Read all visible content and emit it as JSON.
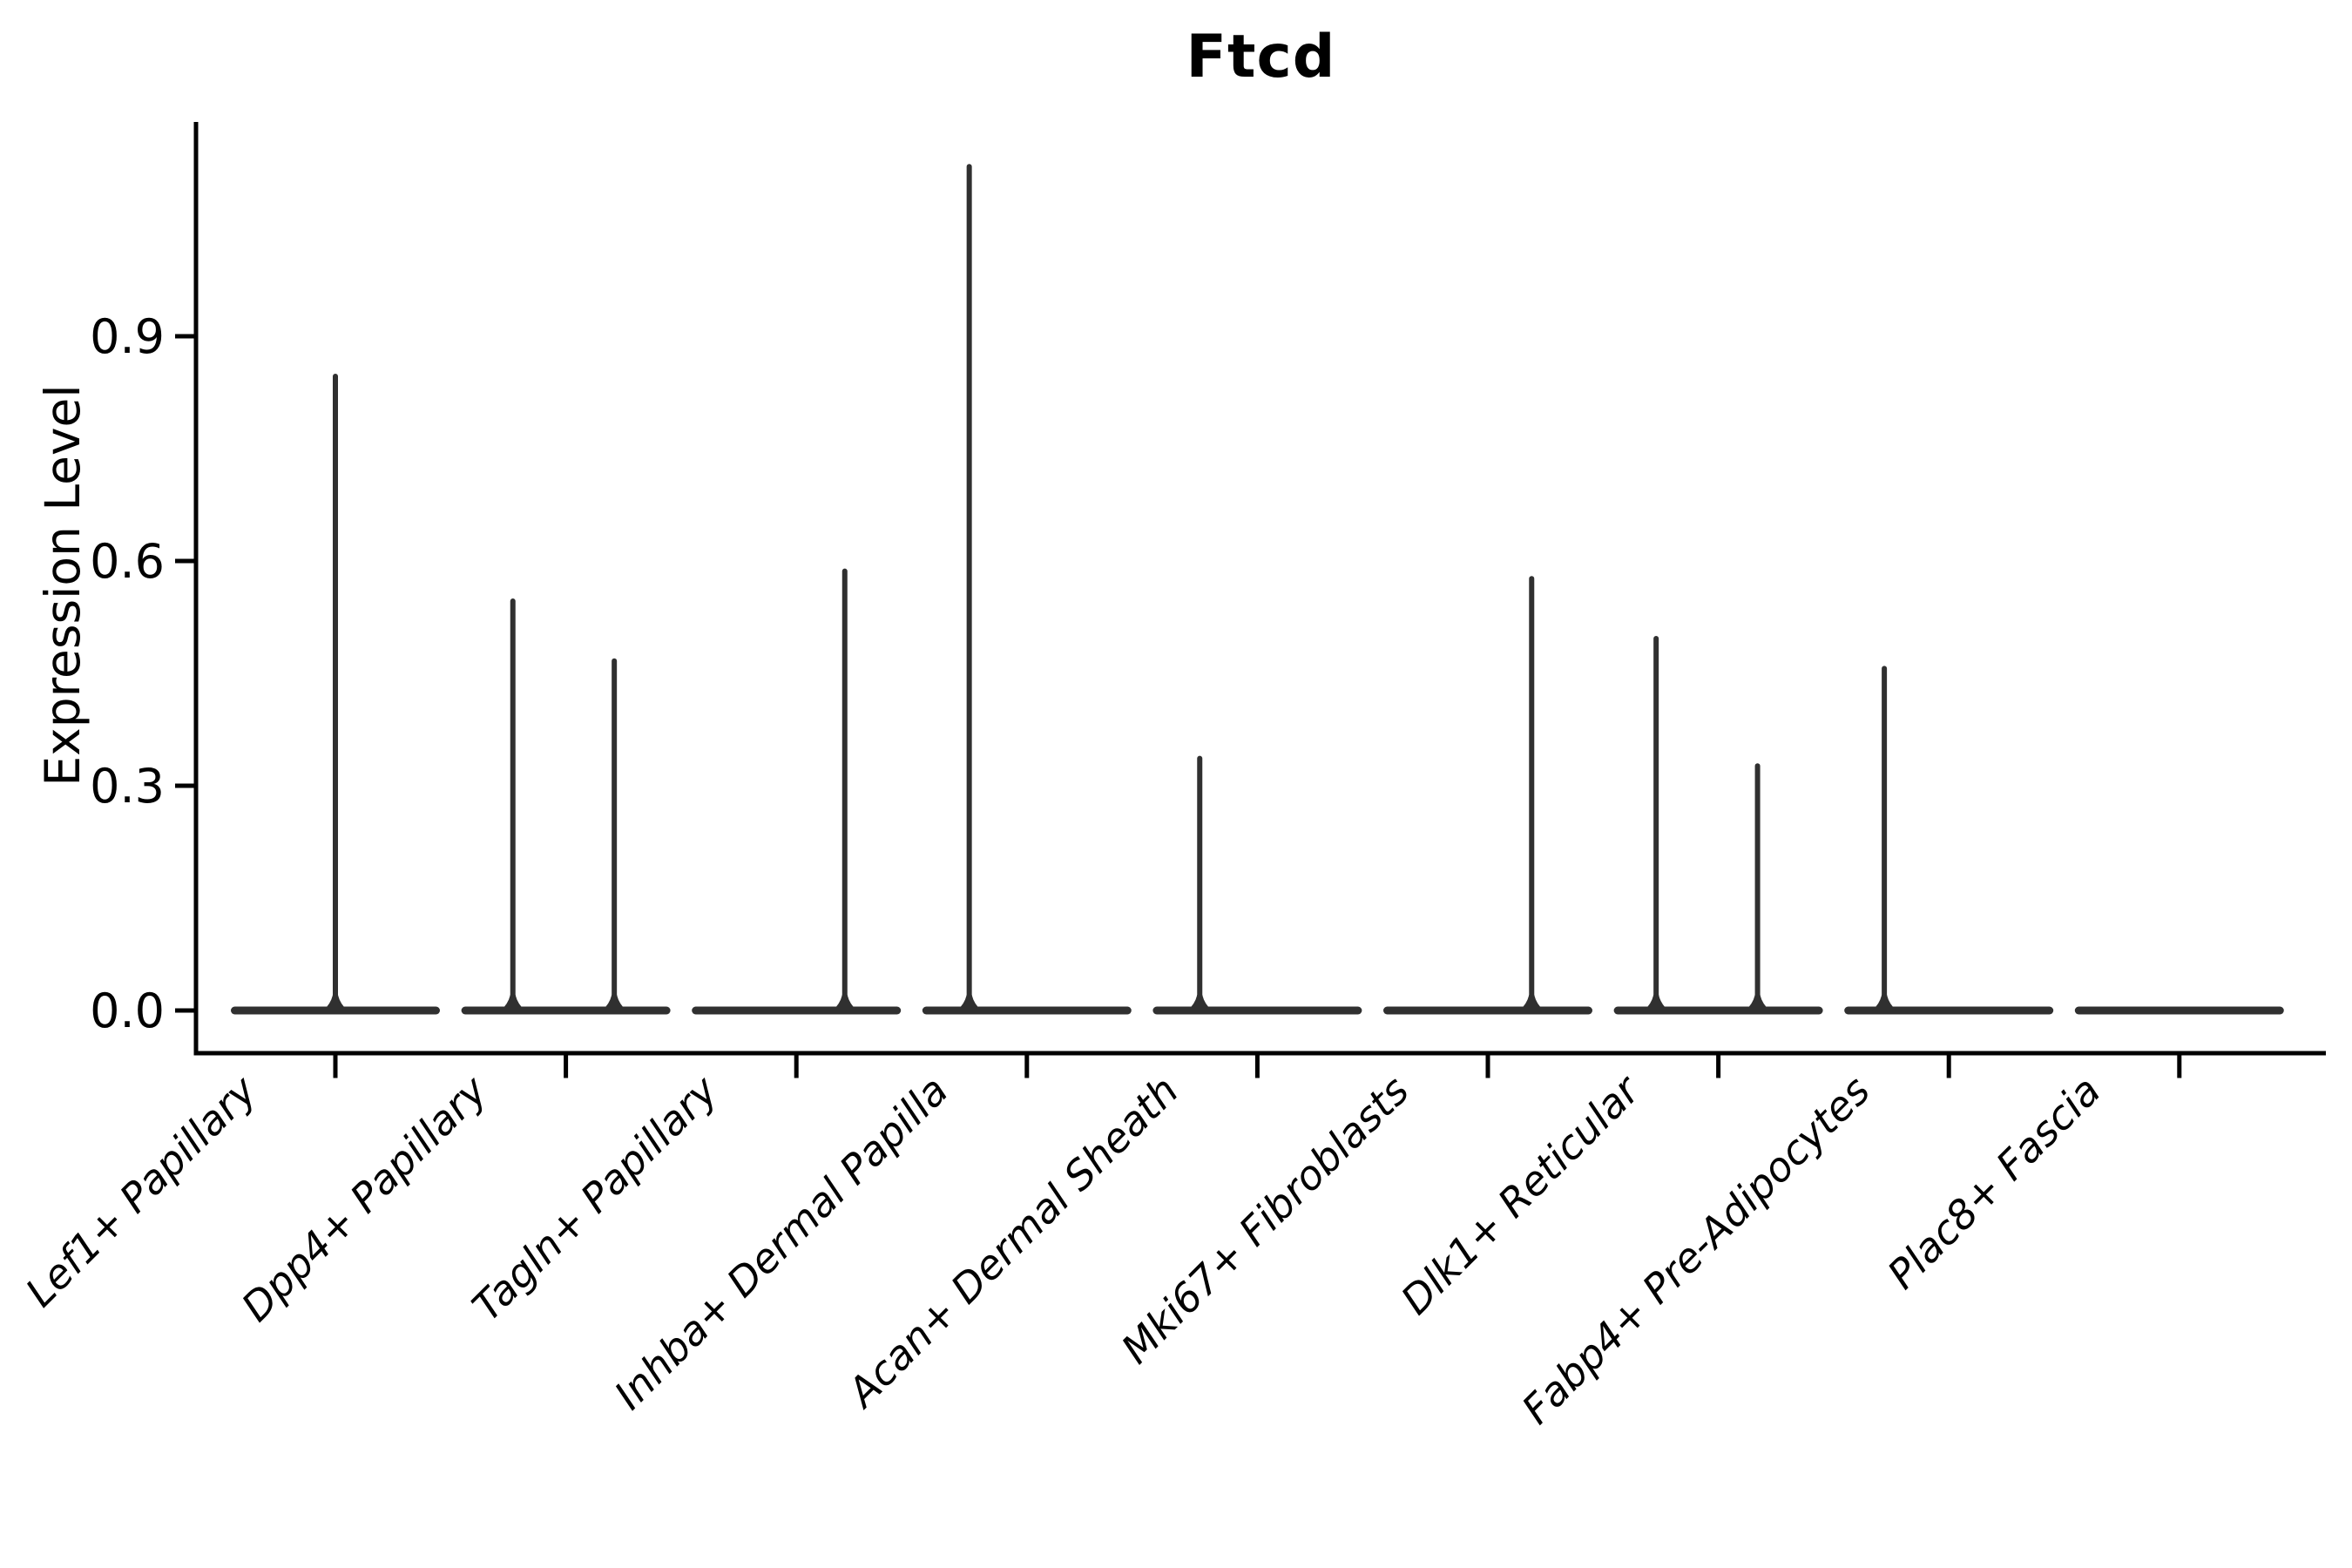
{
  "title": "Ftcd",
  "chart_data": {
    "type": "violin",
    "title": "Ftcd",
    "xlabel": "",
    "ylabel": "Expression Level",
    "categories": [
      "Lef1+ Papillary",
      "Dpp4+ Papillary",
      "Tagln+ Papillary",
      "Inhba+ Dermal Papilla",
      "Acan+ Dermal Sheath",
      "Mki67+ Fibroblasts",
      "Dlk1+ Reticular",
      "Fabp4+ Pre-Adipocytes",
      "Plac8+ Fascia"
    ],
    "yticks": [
      0.0,
      0.3,
      0.6,
      0.9
    ],
    "ylim": [
      -0.06,
      1.19
    ],
    "grid": false,
    "legend": null,
    "violins": [
      {
        "category": "Lef1+ Papillary",
        "baseline": 0.0,
        "spikes": [
          {
            "x_offset": 0.0,
            "max": 0.85
          }
        ]
      },
      {
        "category": "Dpp4+ Papillary",
        "baseline": 0.0,
        "spikes": [
          {
            "x_offset": -0.23,
            "max": 0.55
          },
          {
            "x_offset": 0.21,
            "max": 0.47
          }
        ]
      },
      {
        "category": "Tagln+ Papillary",
        "baseline": 0.0,
        "spikes": [
          {
            "x_offset": 0.21,
            "max": 0.59
          }
        ]
      },
      {
        "category": "Inhba+ Dermal Papilla",
        "baseline": 0.0,
        "spikes": [
          {
            "x_offset": -0.25,
            "max": 1.13
          }
        ]
      },
      {
        "category": "Acan+ Dermal Sheath",
        "baseline": 0.0,
        "spikes": [
          {
            "x_offset": -0.25,
            "max": 0.34
          }
        ]
      },
      {
        "category": "Mki67+ Fibroblasts",
        "baseline": 0.0,
        "spikes": [
          {
            "x_offset": 0.19,
            "max": 0.58
          }
        ]
      },
      {
        "category": "Dlk1+ Reticular",
        "baseline": 0.0,
        "spikes": [
          {
            "x_offset": -0.27,
            "max": 0.5
          },
          {
            "x_offset": 0.17,
            "max": 0.33
          }
        ]
      },
      {
        "category": "Fabp4+ Pre-Adipocytes",
        "baseline": 0.0,
        "spikes": [
          {
            "x_offset": -0.28,
            "max": 0.46
          }
        ]
      },
      {
        "category": "Plac8+ Fascia",
        "baseline": 0.0,
        "spikes": []
      }
    ],
    "colors": {
      "violin": "#303030",
      "axis": "#000000",
      "text": "#000000",
      "background": "#ffffff"
    }
  }
}
